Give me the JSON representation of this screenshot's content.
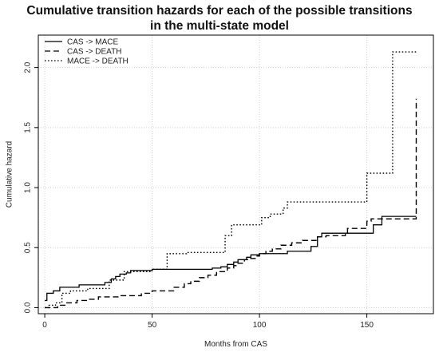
{
  "chart_data": {
    "type": "line",
    "step": true,
    "title": "Cumulative transition hazards for each of the possible transitions",
    "subtitle": "in the multi-state model",
    "xlabel": "Months from CAS",
    "ylabel": "Cumulative hazard",
    "xlim": [
      -3,
      181
    ],
    "ylim": [
      -0.05,
      2.27
    ],
    "xticks": [
      0,
      50,
      100,
      150
    ],
    "yticks": [
      0.0,
      0.5,
      1.0,
      1.5,
      2.0
    ],
    "xtick_labels": [
      "0",
      "50",
      "100",
      "150"
    ],
    "ytick_labels": [
      "0.0",
      "0.5",
      "1.0",
      "1.5",
      "2.0"
    ],
    "grid": true,
    "legend_position": "top-left",
    "series": [
      {
        "name": "CAS -> MACE",
        "line_style": "solid",
        "x": [
          0,
          1,
          4,
          7,
          12,
          16,
          25,
          28,
          31,
          33,
          35,
          38,
          40,
          50,
          62,
          70,
          78,
          82,
          85,
          88,
          90,
          94,
          96,
          100,
          104,
          113,
          117,
          124,
          127,
          129,
          151,
          153,
          157,
          173
        ],
        "y": [
          0.06,
          0.12,
          0.14,
          0.17,
          0.17,
          0.19,
          0.19,
          0.21,
          0.24,
          0.26,
          0.28,
          0.29,
          0.31,
          0.32,
          0.32,
          0.32,
          0.33,
          0.34,
          0.36,
          0.38,
          0.4,
          0.42,
          0.44,
          0.45,
          0.45,
          0.47,
          0.47,
          0.51,
          0.59,
          0.62,
          0.62,
          0.69,
          0.76,
          0.76
        ]
      },
      {
        "name": "CAS -> DEATH",
        "line_style": "dashed",
        "x": [
          0,
          6,
          10,
          15,
          20,
          25,
          35,
          45,
          50,
          60,
          65,
          68,
          72,
          76,
          80,
          85,
          88,
          90,
          93,
          95,
          98,
          100,
          103,
          106,
          110,
          115,
          120,
          127,
          131,
          140,
          141,
          150,
          152,
          173
        ],
        "y": [
          0.0,
          0.02,
          0.04,
          0.06,
          0.07,
          0.09,
          0.1,
          0.12,
          0.14,
          0.17,
          0.2,
          0.22,
          0.25,
          0.27,
          0.3,
          0.33,
          0.35,
          0.37,
          0.4,
          0.41,
          0.43,
          0.45,
          0.47,
          0.49,
          0.52,
          0.54,
          0.56,
          0.59,
          0.6,
          0.62,
          0.66,
          0.72,
          0.74,
          1.74
        ]
      },
      {
        "name": "MACE -> DEATH",
        "line_style": "dotted",
        "x": [
          0,
          2,
          5,
          8,
          12,
          20,
          30,
          37,
          50,
          57,
          66,
          84,
          87,
          101,
          105,
          111,
          113,
          126,
          134,
          150,
          153,
          162,
          173
        ],
        "y": [
          0.0,
          0.02,
          0.04,
          0.12,
          0.14,
          0.16,
          0.23,
          0.3,
          0.32,
          0.45,
          0.46,
          0.6,
          0.69,
          0.75,
          0.78,
          0.83,
          0.88,
          0.88,
          0.88,
          1.12,
          1.12,
          2.13,
          2.13
        ]
      }
    ]
  }
}
